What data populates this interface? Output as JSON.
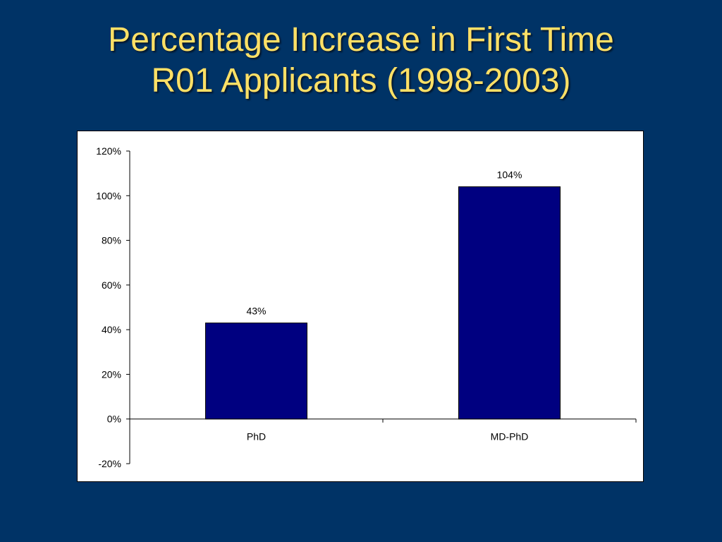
{
  "slide": {
    "title_line1": "Percentage Increase in First Time",
    "title_line2": "R01 Applicants (1998-2003)"
  },
  "colors": {
    "background": "#003366",
    "title": "#FFE066",
    "bar_fill": "#000080"
  },
  "chart_data": {
    "type": "bar",
    "categories": [
      "PhD",
      "MD-PhD"
    ],
    "values": [
      43,
      104
    ],
    "value_labels": [
      "43%",
      "104%"
    ],
    "ylim": [
      -20,
      120
    ],
    "yticks": [
      -20,
      0,
      20,
      40,
      60,
      80,
      100,
      120
    ],
    "ytick_labels": [
      "-20%",
      "0%",
      "20%",
      "40%",
      "60%",
      "80%",
      "100%",
      "120%"
    ],
    "grid": false,
    "legend": "none",
    "title": "",
    "xlabel": "",
    "ylabel": ""
  }
}
